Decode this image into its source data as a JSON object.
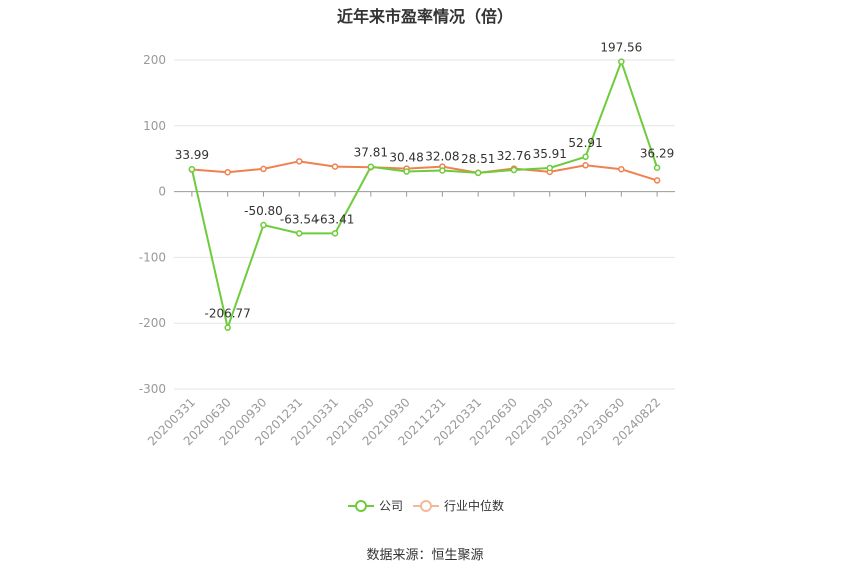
{
  "chart_data": {
    "type": "line",
    "title": "近年来市盈率情况（倍）",
    "categories": [
      "20200331",
      "20200630",
      "20200930",
      "20201231",
      "20210331",
      "20210630",
      "20210930",
      "20211231",
      "20220331",
      "20220630",
      "20220930",
      "20230331",
      "20230630",
      "20240822"
    ],
    "series": [
      {
        "name": "公司",
        "color": "#6dcc3c",
        "values": [
          33.99,
          -206.77,
          -50.8,
          -63.54,
          -63.41,
          37.81,
          30.48,
          32.08,
          28.51,
          32.76,
          35.91,
          52.91,
          197.56,
          36.29
        ],
        "labels": [
          "33.99",
          "-206.77",
          "-50.80",
          "-63.54",
          "-63.41",
          "37.81",
          "30.48",
          "32.08",
          "28.51",
          "32.76",
          "35.91",
          "52.91",
          "197.56",
          "36.29"
        ]
      },
      {
        "name": "行业中位数",
        "color": "#f0814f",
        "values": [
          33.5,
          29.5,
          34.5,
          46.0,
          38.0,
          37.0,
          35.0,
          38.0,
          28.5,
          35.0,
          30.0,
          40.0,
          34.0,
          17.0
        ]
      }
    ],
    "ylim": [
      -300,
      200
    ],
    "yticks": [
      200,
      100,
      0,
      -100,
      -200,
      -300
    ],
    "grid": true,
    "legend": "bottom"
  },
  "footer": {
    "source": "数据来源：恒生聚源"
  }
}
